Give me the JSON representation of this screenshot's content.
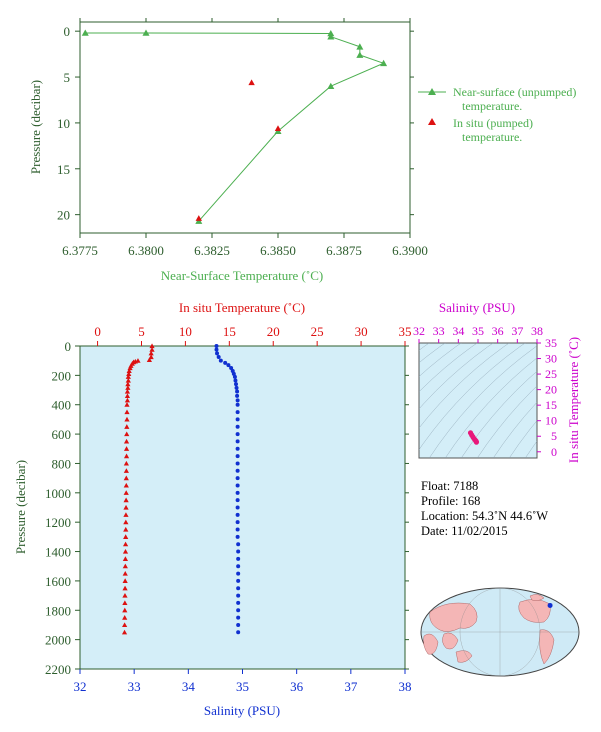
{
  "colors": {
    "green": "#4caf50",
    "axis_green": "#2e5e2e",
    "red": "#dd1111",
    "blue": "#1030d0",
    "magenta": "#cc00cc",
    "panel_bg": "#d4eef8",
    "land": "#f4b6b6",
    "ocean": "#cfeaf6"
  },
  "chart_data": [
    {
      "type": "line",
      "id": "near-surface",
      "xlabel": "Near-Surface Temperature (˚C)",
      "ylabel": "Pressure (decibar)",
      "xlim": [
        6.3775,
        6.39
      ],
      "ylim": [
        22,
        -1
      ],
      "xticks": [
        "6.3775",
        "6.3800",
        "6.3825",
        "6.3850",
        "6.3875",
        "6.3900"
      ],
      "xtick_values": [
        6.3775,
        6.38,
        6.3825,
        6.385,
        6.3875,
        6.39
      ],
      "yticks": [
        "0",
        "5",
        "10",
        "15",
        "20"
      ],
      "ytick_values": [
        0,
        5,
        10,
        15,
        20
      ],
      "series": [
        {
          "name": "Near-surface (unpumped) temperature.",
          "marker": "triangle-line",
          "points": [
            [
              6.3777,
              0.2
            ],
            [
              6.38,
              0.2
            ],
            [
              6.387,
              0.25
            ],
            [
              6.387,
              0.6
            ],
            [
              6.3881,
              1.7
            ],
            [
              6.3881,
              2.6
            ],
            [
              6.389,
              3.5
            ],
            [
              6.387,
              6.0
            ],
            [
              6.385,
              10.9
            ],
            [
              6.382,
              20.7
            ]
          ]
        },
        {
          "name": "In situ (pumped) temperature.",
          "marker": "triangle",
          "points": [
            [
              6.384,
              5.6
            ],
            [
              6.385,
              10.6
            ],
            [
              6.382,
              20.4
            ]
          ]
        }
      ],
      "legend": [
        {
          "line1": "Near-surface (unpumped)",
          "line2": "temperature."
        },
        {
          "line1": "In situ (pumped)",
          "line2": "temperature."
        }
      ]
    },
    {
      "type": "scatter",
      "id": "profile",
      "ylabel": "Pressure (decibar)",
      "ylim": [
        2200,
        0
      ],
      "yticks": [
        "0",
        "200",
        "400",
        "600",
        "800",
        "1000",
        "1200",
        "1400",
        "1600",
        "1800",
        "2000",
        "2200"
      ],
      "ytick_values": [
        0,
        200,
        400,
        600,
        800,
        1000,
        1200,
        1400,
        1600,
        1800,
        2000,
        2200
      ],
      "top_axis": {
        "label": "In situ Temperature (˚C)",
        "lim": [
          -2,
          35
        ],
        "ticks": [
          "0",
          "5",
          "10",
          "15",
          "20",
          "25",
          "30",
          "35"
        ],
        "tick_values": [
          0,
          5,
          10,
          15,
          20,
          25,
          30,
          35
        ]
      },
      "bottom_axis": {
        "label": "Salinity (PSU)",
        "lim": [
          32,
          38
        ],
        "ticks": [
          "32",
          "33",
          "34",
          "35",
          "36",
          "37",
          "38"
        ],
        "tick_values": [
          32,
          33,
          34,
          35,
          36,
          37,
          38
        ]
      },
      "series": [
        {
          "name": "temperature",
          "axis": "top",
          "marker": "triangle",
          "points": [
            [
              6.2,
              0
            ],
            [
              6.2,
              25
            ],
            [
              6.1,
              50
            ],
            [
              6.1,
              75
            ],
            [
              5.9,
              95
            ],
            [
              4.6,
              100
            ],
            [
              4.3,
              105
            ],
            [
              4.1,
              110
            ],
            [
              3.95,
              120
            ],
            [
              3.8,
              135
            ],
            [
              3.7,
              150
            ],
            [
              3.6,
              170
            ],
            [
              3.55,
              190
            ],
            [
              3.5,
              210
            ],
            [
              3.5,
              235
            ],
            [
              3.45,
              260
            ],
            [
              3.45,
              285
            ],
            [
              3.4,
              310
            ],
            [
              3.4,
              340
            ],
            [
              3.4,
              370
            ],
            [
              3.35,
              400
            ],
            [
              3.35,
              450
            ],
            [
              3.35,
              500
            ],
            [
              3.33,
              550
            ],
            [
              3.32,
              600
            ],
            [
              3.3,
              650
            ],
            [
              3.3,
              700
            ],
            [
              3.3,
              750
            ],
            [
              3.28,
              800
            ],
            [
              3.28,
              850
            ],
            [
              3.27,
              900
            ],
            [
              3.27,
              950
            ],
            [
              3.26,
              1000
            ],
            [
              3.25,
              1050
            ],
            [
              3.24,
              1100
            ],
            [
              3.23,
              1150
            ],
            [
              3.22,
              1200
            ],
            [
              3.21,
              1250
            ],
            [
              3.2,
              1300
            ],
            [
              3.19,
              1350
            ],
            [
              3.18,
              1400
            ],
            [
              3.17,
              1450
            ],
            [
              3.16,
              1500
            ],
            [
              3.15,
              1550
            ],
            [
              3.14,
              1600
            ],
            [
              3.13,
              1650
            ],
            [
              3.12,
              1700
            ],
            [
              3.11,
              1750
            ],
            [
              3.1,
              1800
            ],
            [
              3.09,
              1850
            ],
            [
              3.08,
              1900
            ],
            [
              3.07,
              1950
            ]
          ]
        },
        {
          "name": "salinity",
          "axis": "bottom",
          "marker": "dot",
          "points": [
            [
              34.52,
              0
            ],
            [
              34.52,
              25
            ],
            [
              34.53,
              50
            ],
            [
              34.56,
              75
            ],
            [
              34.6,
              100
            ],
            [
              34.68,
              115
            ],
            [
              34.74,
              130
            ],
            [
              34.79,
              150
            ],
            [
              34.82,
              170
            ],
            [
              34.84,
              190
            ],
            [
              34.86,
              210
            ],
            [
              34.87,
              235
            ],
            [
              34.88,
              260
            ],
            [
              34.89,
              285
            ],
            [
              34.9,
              310
            ],
            [
              34.9,
              340
            ],
            [
              34.91,
              370
            ],
            [
              34.91,
              400
            ],
            [
              34.91,
              450
            ],
            [
              34.91,
              500
            ],
            [
              34.91,
              550
            ],
            [
              34.91,
              600
            ],
            [
              34.91,
              650
            ],
            [
              34.91,
              700
            ],
            [
              34.91,
              750
            ],
            [
              34.91,
              800
            ],
            [
              34.91,
              850
            ],
            [
              34.91,
              900
            ],
            [
              34.91,
              950
            ],
            [
              34.91,
              1000
            ],
            [
              34.91,
              1050
            ],
            [
              34.91,
              1100
            ],
            [
              34.91,
              1150
            ],
            [
              34.91,
              1200
            ],
            [
              34.91,
              1250
            ],
            [
              34.91,
              1300
            ],
            [
              34.92,
              1350
            ],
            [
              34.92,
              1400
            ],
            [
              34.92,
              1450
            ],
            [
              34.92,
              1500
            ],
            [
              34.92,
              1550
            ],
            [
              34.92,
              1600
            ],
            [
              34.92,
              1650
            ],
            [
              34.92,
              1700
            ],
            [
              34.92,
              1750
            ],
            [
              34.92,
              1800
            ],
            [
              34.92,
              1850
            ],
            [
              34.92,
              1900
            ],
            [
              34.92,
              1950
            ]
          ]
        }
      ]
    },
    {
      "type": "scatter",
      "id": "ts-diagram",
      "xlabel": "Salinity (PSU)",
      "ylabel": "In situ Temperature (˚C)",
      "xlim": [
        32,
        38
      ],
      "ylim": [
        -2,
        35
      ],
      "xticks": [
        "32",
        "33",
        "34",
        "35",
        "36",
        "37",
        "38"
      ],
      "xtick_values": [
        32,
        33,
        34,
        35,
        36,
        37,
        38
      ],
      "yticks": [
        "0",
        "5",
        "10",
        "15",
        "20",
        "25",
        "30",
        "35"
      ],
      "ytick_values": [
        0,
        5,
        10,
        15,
        20,
        25,
        30,
        35
      ],
      "points": [
        [
          34.62,
          6.1
        ],
        [
          34.68,
          5.4
        ],
        [
          34.74,
          4.8
        ],
        [
          34.79,
          4.3
        ],
        [
          34.84,
          3.9
        ],
        [
          34.88,
          3.6
        ],
        [
          34.9,
          3.4
        ],
        [
          34.91,
          3.3
        ],
        [
          34.92,
          3.1
        ]
      ]
    }
  ],
  "info": {
    "float": "Float:  7188",
    "profile": "Profile:  168",
    "location": "Location:  54.3˚N  44.6˚W",
    "date": "Date:  11/02/2015"
  },
  "map": {
    "float_lon": -44.6,
    "float_lat": 54.3
  }
}
